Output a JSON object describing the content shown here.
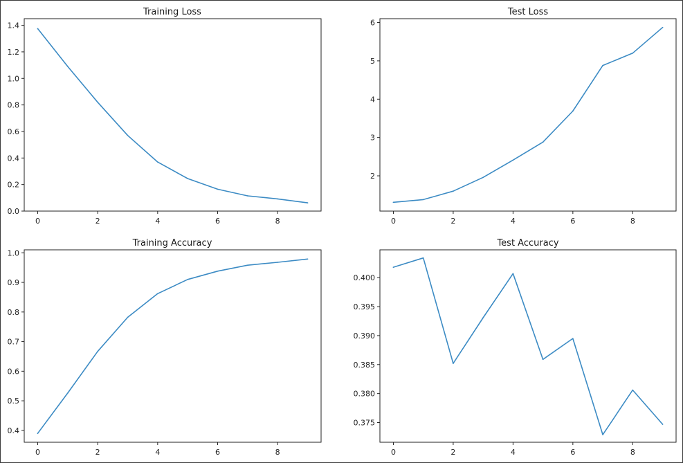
{
  "figure": {
    "colors": {
      "line": "#3c8bc4",
      "axes": "#222222",
      "background": "#ffffff"
    }
  },
  "chart_data": [
    {
      "type": "line",
      "title": "Training Loss",
      "xlabel": "",
      "ylabel": "",
      "x": [
        0,
        1,
        2,
        3,
        4,
        5,
        6,
        7,
        8,
        9
      ],
      "series": [
        {
          "values": [
            1.375,
            1.09,
            0.82,
            0.57,
            0.37,
            0.245,
            0.165,
            0.115,
            0.092,
            0.062
          ]
        }
      ],
      "xlim": [
        -0.45,
        9.45
      ],
      "ylim": [
        0,
        1.45
      ],
      "xticks": [
        0,
        2,
        4,
        6,
        8
      ],
      "xtick_labels": [
        "0",
        "2",
        "4",
        "6",
        "8"
      ],
      "yticks": [
        0.0,
        0.2,
        0.4,
        0.6,
        0.8,
        1.0,
        1.2,
        1.4
      ],
      "ytick_labels": [
        "0.0",
        "0.2",
        "0.4",
        "0.6",
        "0.8",
        "1.0",
        "1.2",
        "1.4"
      ],
      "grid": false,
      "legend": "none"
    },
    {
      "type": "line",
      "title": "Test Loss",
      "xlabel": "",
      "ylabel": "",
      "x": [
        0,
        1,
        2,
        3,
        4,
        5,
        6,
        7,
        8,
        9
      ],
      "series": [
        {
          "values": [
            1.31,
            1.38,
            1.6,
            1.96,
            2.41,
            2.88,
            3.69,
            4.88,
            5.2,
            5.87
          ]
        }
      ],
      "xlim": [
        -0.45,
        9.45
      ],
      "ylim": [
        1.08,
        6.1
      ],
      "xticks": [
        0,
        2,
        4,
        6,
        8
      ],
      "xtick_labels": [
        "0",
        "2",
        "4",
        "6",
        "8"
      ],
      "yticks": [
        2,
        3,
        4,
        5,
        6
      ],
      "ytick_labels": [
        "2",
        "3",
        "4",
        "5",
        "6"
      ],
      "grid": false,
      "legend": "none"
    },
    {
      "type": "line",
      "title": "Training Accuracy",
      "xlabel": "",
      "ylabel": "",
      "x": [
        0,
        1,
        2,
        3,
        4,
        5,
        6,
        7,
        8,
        9
      ],
      "series": [
        {
          "values": [
            0.39,
            0.526,
            0.667,
            0.782,
            0.862,
            0.91,
            0.938,
            0.958,
            0.968,
            0.979
          ]
        }
      ],
      "xlim": [
        -0.45,
        9.45
      ],
      "ylim": [
        0.36,
        1.01
      ],
      "xticks": [
        0,
        2,
        4,
        6,
        8
      ],
      "xtick_labels": [
        "0",
        "2",
        "4",
        "6",
        "8"
      ],
      "yticks": [
        0.4,
        0.5,
        0.6,
        0.7,
        0.8,
        0.9,
        1.0
      ],
      "ytick_labels": [
        "0.4",
        "0.5",
        "0.6",
        "0.7",
        "0.8",
        "0.9",
        "1.0"
      ],
      "grid": false,
      "legend": "none"
    },
    {
      "type": "line",
      "title": "Test Accuracy",
      "xlabel": "",
      "ylabel": "",
      "x": [
        0,
        1,
        2,
        3,
        4,
        5,
        6,
        7,
        8,
        9
      ],
      "series": [
        {
          "values": [
            0.4018,
            0.4034,
            0.3852,
            0.3931,
            0.4007,
            0.3859,
            0.3895,
            0.3729,
            0.3806,
            0.3747
          ]
        }
      ],
      "xlim": [
        -0.45,
        9.45
      ],
      "ylim": [
        0.3716,
        0.4048
      ],
      "xticks": [
        0,
        2,
        4,
        6,
        8
      ],
      "xtick_labels": [
        "0",
        "2",
        "4",
        "6",
        "8"
      ],
      "yticks": [
        0.375,
        0.38,
        0.385,
        0.39,
        0.395,
        0.4
      ],
      "ytick_labels": [
        "0.375",
        "0.380",
        "0.385",
        "0.390",
        "0.395",
        "0.400"
      ],
      "grid": false,
      "legend": "none"
    }
  ]
}
